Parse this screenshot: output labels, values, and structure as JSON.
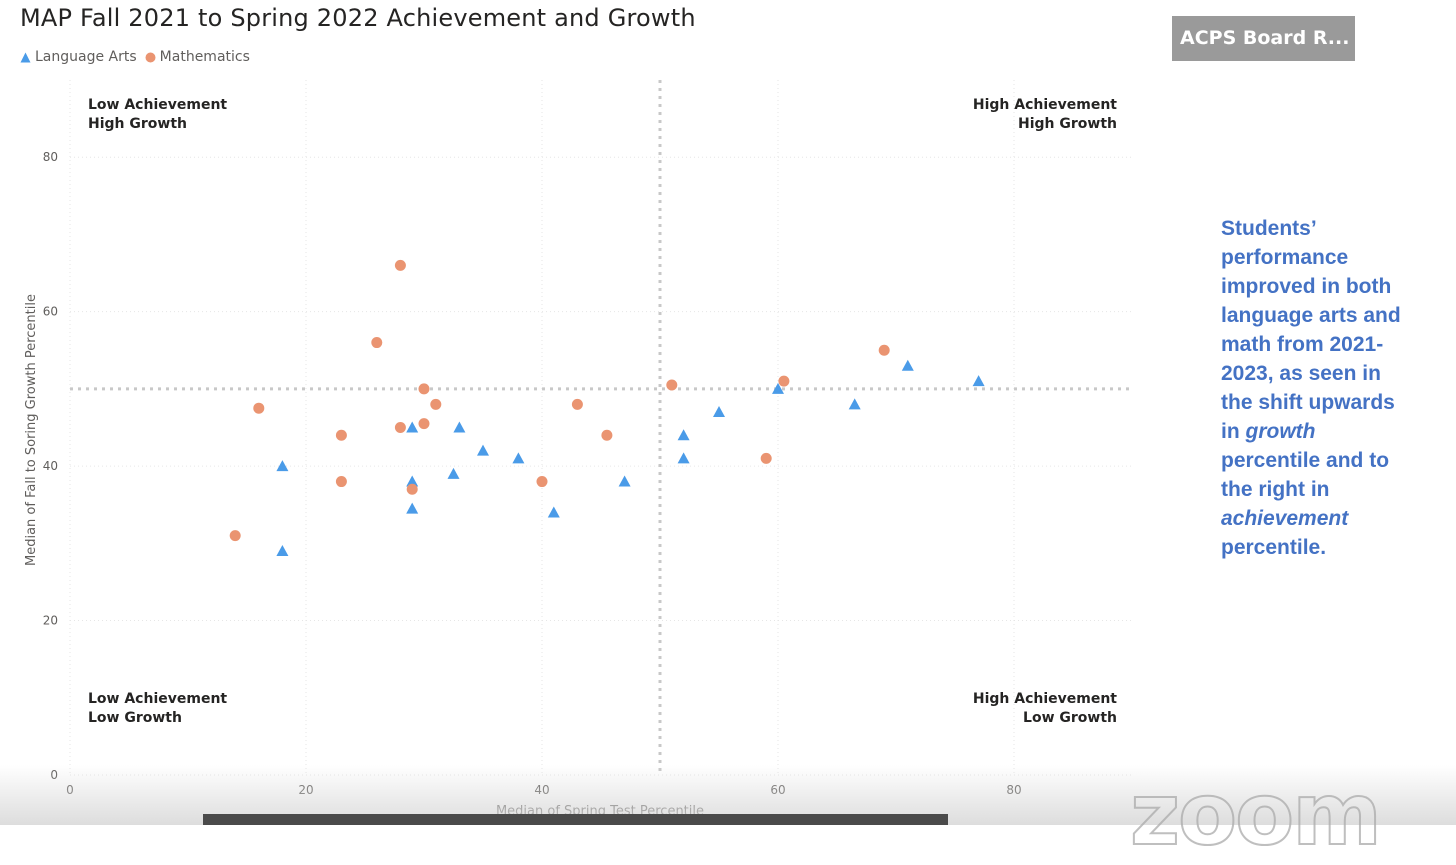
{
  "title": "MAP Fall 2021 to Spring 2022 Achievement and Growth",
  "video_tile_label": "ACPS Board R...",
  "colors": {
    "language_arts": "#4a9be8",
    "mathematics": "#ea9471",
    "annotation": "#4472c4",
    "grid": "#e6e6e6",
    "reference_line": "#c8c8c8"
  },
  "quadrants": {
    "top_left": [
      "Low Achievement",
      "High Growth"
    ],
    "top_right": [
      "High Achievement",
      "High Growth"
    ],
    "bottom_left": [
      "Low Achievement",
      "Low Growth"
    ],
    "bottom_right": [
      "High Achievement",
      "Low Growth"
    ]
  },
  "annotation": {
    "line1": "Students’",
    "line2": "performance",
    "line3": "improved in both",
    "line4": "language arts and",
    "line5": "math from 2021-",
    "line6": "2023, as seen in",
    "line7": "the shift upwards",
    "line8_pre": "in ",
    "line8_em": "growth",
    "line9": "percentile and to",
    "line10": "the right in",
    "line11_em": "achievement",
    "line12": "percentile."
  },
  "chart_data": {
    "type": "scatter",
    "title": "MAP Fall 2021 to Spring 2022 Achievement and Growth",
    "xlabel": "Median of Spring Test Percentile",
    "ylabel": "Median of Fall to Soring Growth Percentile",
    "xlim": [
      0,
      90
    ],
    "ylim": [
      0,
      90
    ],
    "x_ticks": [
      0,
      20,
      40,
      60,
      80
    ],
    "y_ticks": [
      0,
      20,
      40,
      60,
      80
    ],
    "reference_lines": {
      "x": 50,
      "y": 50
    },
    "legend": "top-left",
    "grid": true,
    "series": [
      {
        "name": "Language Arts",
        "marker": "triangle",
        "points": [
          [
            18,
            40
          ],
          [
            18,
            29
          ],
          [
            29,
            45
          ],
          [
            29,
            38
          ],
          [
            29,
            34.5
          ],
          [
            32.5,
            39
          ],
          [
            33,
            45
          ],
          [
            35,
            42
          ],
          [
            38,
            41
          ],
          [
            41,
            34
          ],
          [
            47,
            38
          ],
          [
            52,
            44
          ],
          [
            52,
            41
          ],
          [
            55,
            47
          ],
          [
            60,
            50
          ],
          [
            66.5,
            48
          ],
          [
            71,
            53
          ],
          [
            77,
            51
          ]
        ]
      },
      {
        "name": "Mathematics",
        "marker": "circle",
        "points": [
          [
            14,
            31
          ],
          [
            16,
            47.5
          ],
          [
            23,
            44
          ],
          [
            23,
            38
          ],
          [
            26,
            56
          ],
          [
            28,
            66
          ],
          [
            28,
            45
          ],
          [
            29,
            37
          ],
          [
            30,
            50
          ],
          [
            30,
            45.5
          ],
          [
            31,
            48
          ],
          [
            40,
            38
          ],
          [
            43,
            48
          ],
          [
            45.5,
            44
          ],
          [
            51,
            50.5
          ],
          [
            59,
            41
          ],
          [
            60.5,
            51
          ],
          [
            69,
            55
          ]
        ]
      }
    ]
  }
}
